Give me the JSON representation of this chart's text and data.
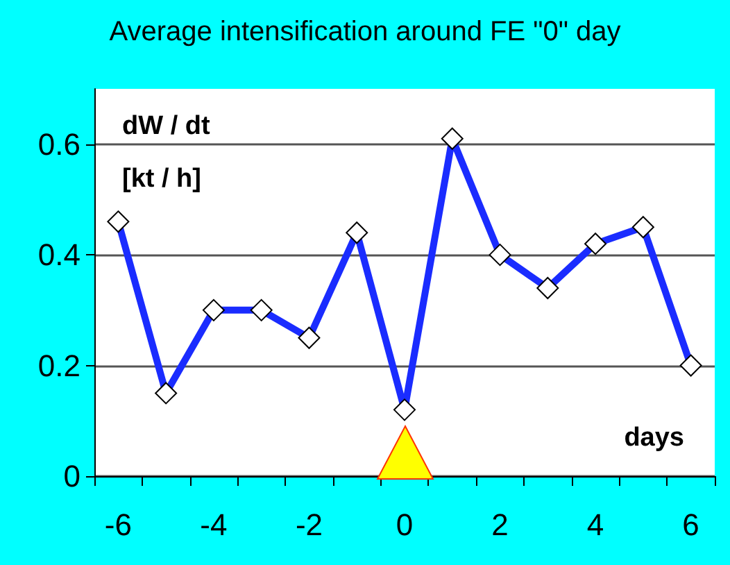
{
  "chart_data": {
    "type": "line",
    "title": "Average intensification around FE \"0\" day",
    "xlabel": "days",
    "ylabel": "dW / dt\n[kt / h]",
    "categories": [
      "-6",
      null,
      "-4",
      null,
      "-2",
      null,
      "0",
      null,
      "2",
      null,
      "4",
      null,
      "6"
    ],
    "series": [
      {
        "color": "#1a2cff",
        "values": [
          0.46,
          0.15,
          0.3,
          0.3,
          0.25,
          0.44,
          0.12,
          0.61,
          0.4,
          0.34,
          0.42,
          0.45,
          0.2
        ]
      }
    ],
    "ylim": [
      0,
      0.7
    ],
    "yticks": [
      0,
      0.2,
      0.4,
      0.6
    ],
    "grid": "y",
    "marker": "diamond",
    "line_style": "solid"
  }
}
